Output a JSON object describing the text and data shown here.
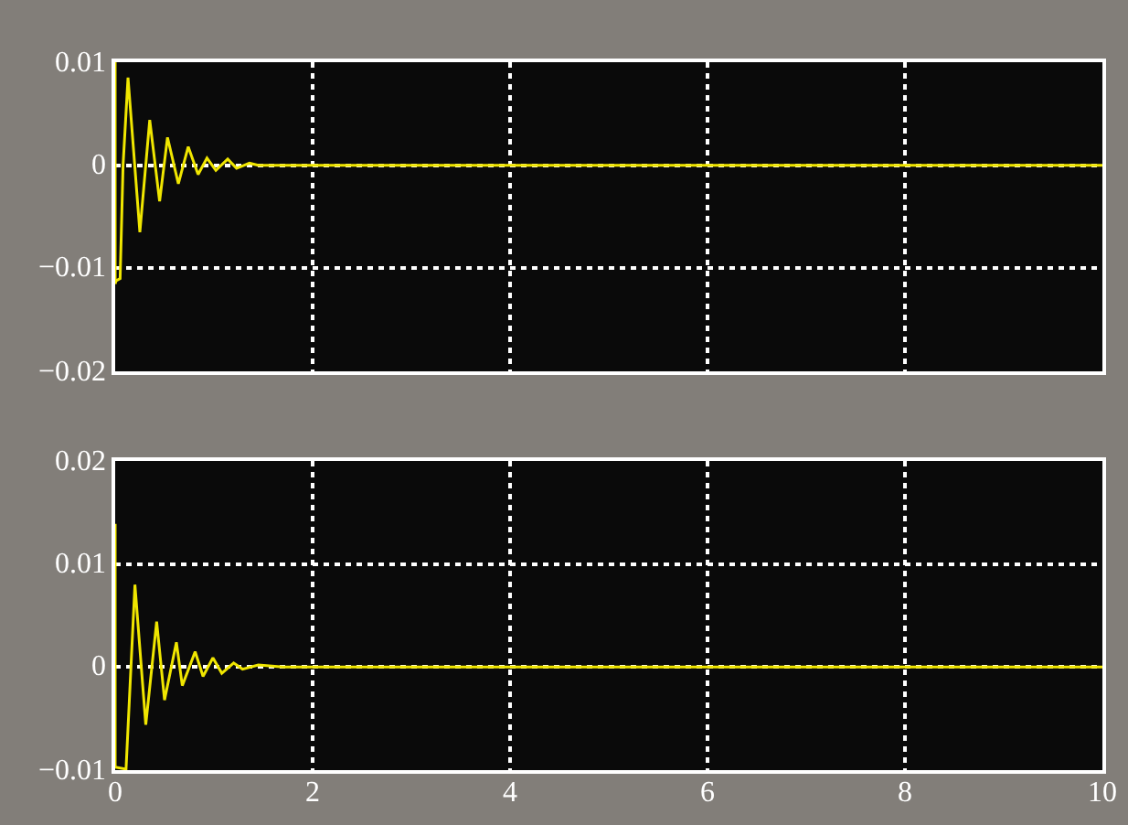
{
  "chart_data": [
    {
      "type": "line",
      "x": [
        0,
        0,
        0.01,
        0.05,
        0.08,
        0.13,
        0.25,
        0.35,
        0.45,
        0.53,
        0.64,
        0.74,
        0.84,
        0.93,
        1.02,
        1.14,
        1.23,
        1.36,
        1.45,
        1.7,
        10
      ],
      "series": [
        {
          "color": "#f0e600",
          "values": [
            0.01,
            -0.0115,
            -0.0112,
            -0.011,
            0.0,
            0.0085,
            -0.0065,
            0.0044,
            -0.0035,
            0.0027,
            -0.0018,
            0.0018,
            -0.0009,
            0.0007,
            -0.0005,
            0.0006,
            -0.0003,
            0.0002,
            0,
            0,
            0
          ]
        }
      ],
      "xlim": [
        0,
        10
      ],
      "xticks": [
        0,
        2,
        4,
        6,
        8,
        10
      ],
      "ylim": [
        -0.02,
        0.01
      ],
      "yticks": [
        -0.02,
        -0.01,
        0,
        0.01
      ],
      "tick_labels": "y",
      "grid": true,
      "line_style": "solid",
      "marker": "none"
    },
    {
      "type": "line",
      "x": [
        0,
        0,
        0.11,
        0.2,
        0.31,
        0.42,
        0.5,
        0.62,
        0.68,
        0.81,
        0.89,
        0.99,
        1.08,
        1.2,
        1.29,
        1.45,
        1.7,
        10
      ],
      "series": [
        {
          "color": "#f0e600",
          "values": [
            0.0139,
            -0.0097,
            -0.0099,
            0.008,
            -0.0056,
            0.0044,
            -0.0032,
            0.0024,
            -0.0018,
            0.0015,
            -0.0009,
            0.0009,
            -0.0006,
            0.0004,
            -0.0002,
            0.0002,
            0,
            0
          ]
        }
      ],
      "xlim": [
        0,
        10
      ],
      "xticks": [
        0,
        2,
        4,
        6,
        8,
        10
      ],
      "ylim": [
        -0.01,
        0.02
      ],
      "yticks": [
        -0.01,
        0,
        0.01,
        0.02
      ],
      "grid": true,
      "line_style": "solid",
      "marker": "none"
    }
  ]
}
